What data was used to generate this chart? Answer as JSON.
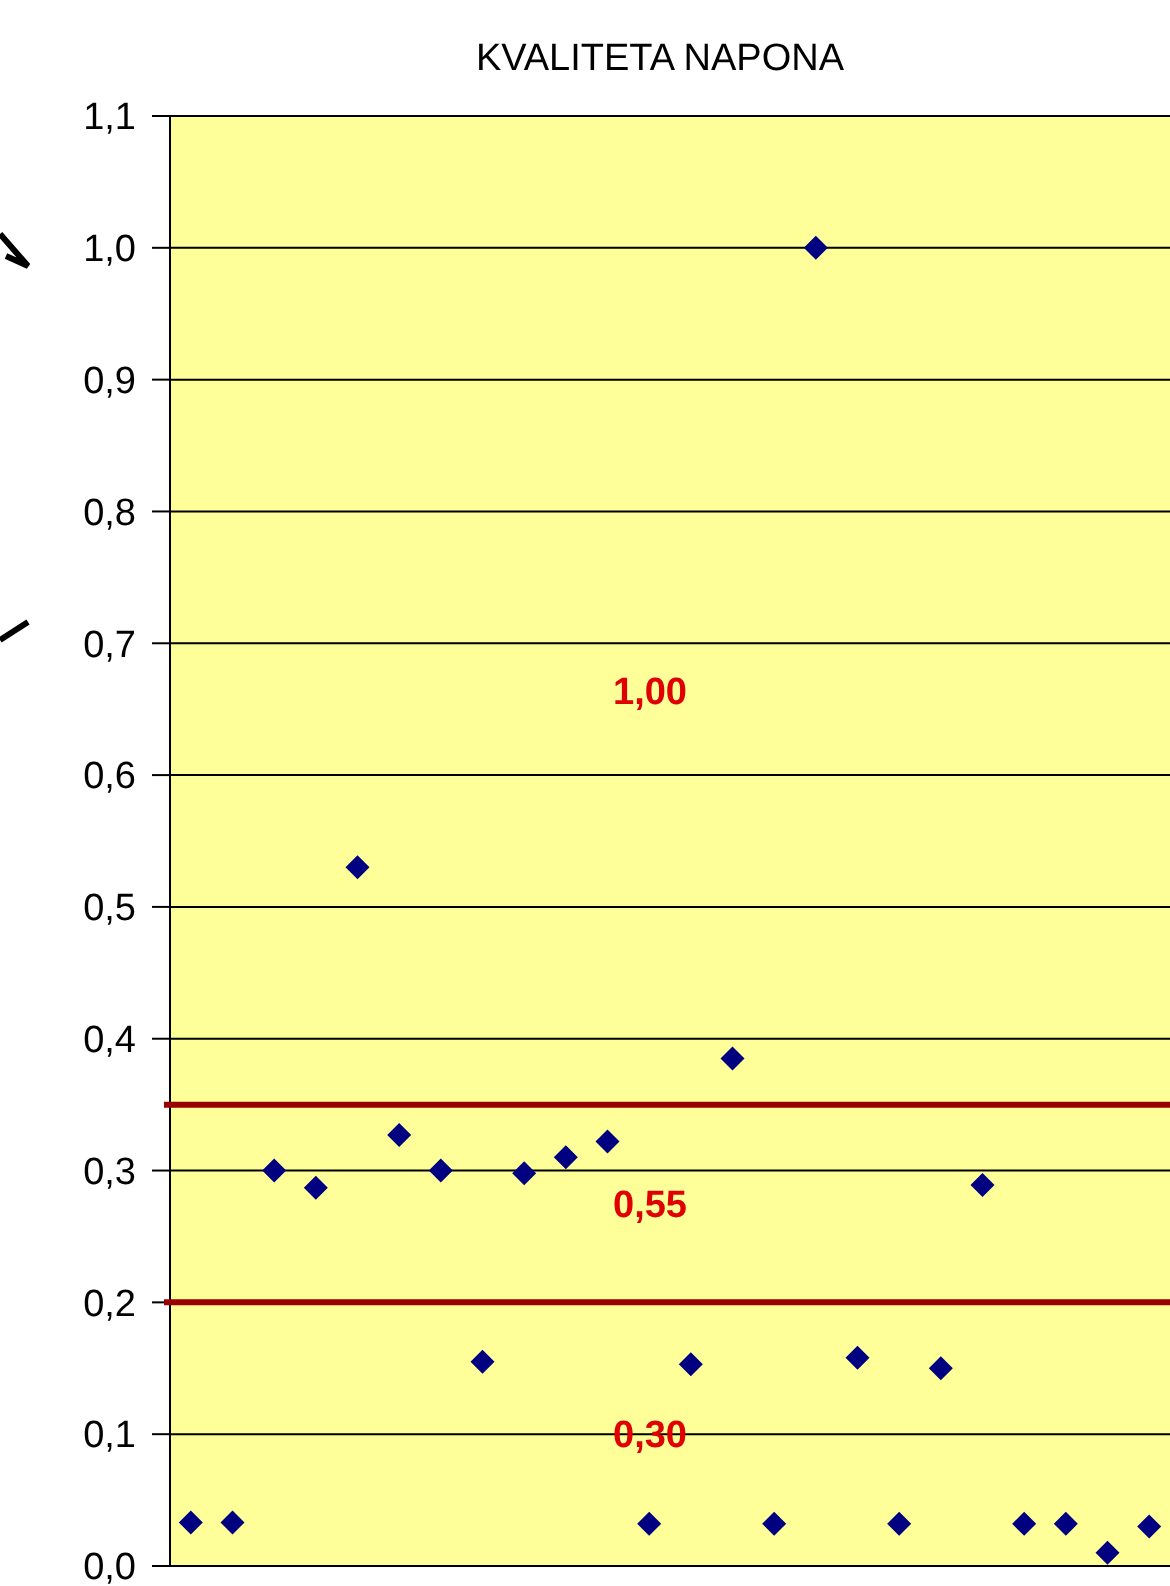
{
  "chart_data": {
    "type": "scatter",
    "title": "KVALITETA NAPONA",
    "categories": [
      null,
      null,
      null,
      null,
      null,
      null,
      null,
      null,
      null,
      null,
      null,
      null,
      null,
      null,
      null,
      null,
      null,
      null,
      null,
      null,
      null,
      null,
      null,
      null
    ],
    "series": [
      {
        "color": "#000080",
        "values": [
          0.033,
          0.033,
          0.3,
          0.287,
          0.53,
          0.327,
          0.3,
          0.155,
          0.298,
          0.31,
          0.322,
          0.032,
          0.153,
          0.385,
          0.032,
          1.0,
          0.158,
          0.032,
          0.15,
          0.289,
          0.032,
          0.032,
          0.01,
          0.03
        ]
      }
    ],
    "ylim": [
      0,
      1.1
    ],
    "yticks": [
      {
        "value": 0,
        "label": "0,0"
      },
      {
        "value": 0.1,
        "label": "0,1"
      },
      {
        "value": 0.2,
        "label": "0,2"
      },
      {
        "value": 0.3,
        "label": "0,3"
      },
      {
        "value": 0.4,
        "label": "0,4"
      },
      {
        "value": 0.5,
        "label": "0,5"
      },
      {
        "value": 0.6,
        "label": "0,6"
      },
      {
        "value": 0.7,
        "label": "0,7"
      },
      {
        "value": 0.8,
        "label": "0,8"
      },
      {
        "value": 0.9,
        "label": "0,9"
      },
      {
        "value": 1.0,
        "label": "1,0"
      },
      {
        "value": 1.1,
        "label": "1,1"
      }
    ],
    "ref_lines": [
      {
        "axis": "y",
        "value": 0.35,
        "color": "#990000"
      },
      {
        "axis": "y",
        "value": 0.2,
        "color": "#990000"
      }
    ],
    "annotations": [
      "1,00",
      "0,55",
      "0,30"
    ],
    "grid": "y",
    "marker": "diamond"
  }
}
